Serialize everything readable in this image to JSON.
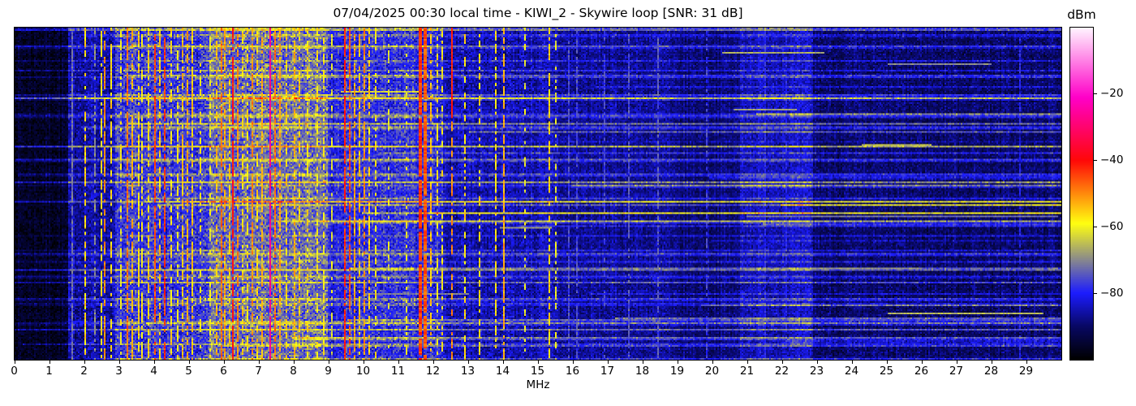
{
  "title": "07/04/2025 00:30 local time - KIWI_2 - Skywire loop [SNR: 31 dB]",
  "x_axis": {
    "label": "MHz",
    "ticks": [
      0,
      1,
      2,
      3,
      4,
      5,
      6,
      7,
      8,
      9,
      10,
      11,
      12,
      13,
      14,
      15,
      16,
      17,
      18,
      19,
      20,
      21,
      22,
      23,
      24,
      25,
      26,
      27,
      28,
      29
    ]
  },
  "colorbar": {
    "label": "dBm",
    "ticks": [
      {
        "v": -20,
        "label": "−20"
      },
      {
        "v": -40,
        "label": "−40"
      },
      {
        "v": -60,
        "label": "−60"
      },
      {
        "v": -80,
        "label": "−80"
      }
    ]
  },
  "chart_data": {
    "type": "heatmap",
    "subtype": "radio-spectrogram-waterfall",
    "title": "07/04/2025 00:30 local time - KIWI_2 - Skywire loop [SNR: 31 dB]",
    "xlabel": "MHz",
    "x_range_mhz": [
      0,
      30
    ],
    "x_ticks": [
      0,
      1,
      2,
      3,
      4,
      5,
      6,
      7,
      8,
      9,
      10,
      11,
      12,
      13,
      14,
      15,
      16,
      17,
      18,
      19,
      20,
      21,
      22,
      23,
      24,
      25,
      26,
      27,
      28,
      29
    ],
    "y_axis": "time (unlabeled, newest rows)",
    "snr_db": 31,
    "colorbar": {
      "label": "dBm",
      "range_top_dbm": 0,
      "range_bottom_dbm": -100,
      "ticks": [
        -20,
        -40,
        -60,
        -80
      ],
      "stops": [
        [
          -100,
          0,
          0,
          0
        ],
        [
          -90,
          8,
          8,
          100
        ],
        [
          -80,
          28,
          28,
          255
        ],
        [
          -59,
          255,
          255,
          16
        ],
        [
          -40,
          255,
          8,
          8
        ],
        [
          -21,
          255,
          0,
          200
        ],
        [
          0,
          255,
          244,
          255
        ]
      ]
    },
    "seed": 7,
    "noise_regions": [
      [
        0.0,
        1.55,
        -96,
        5
      ],
      [
        1.55,
        2.9,
        -86,
        7
      ],
      [
        2.9,
        5.6,
        -78,
        10
      ],
      [
        5.6,
        9.0,
        -73,
        10
      ],
      [
        9.0,
        9.35,
        -80,
        8
      ],
      [
        9.35,
        12.3,
        -79,
        9
      ],
      [
        12.3,
        15.6,
        -85,
        7
      ],
      [
        15.6,
        18.8,
        -87,
        6
      ],
      [
        18.8,
        20.8,
        -89,
        5
      ],
      [
        20.8,
        22.9,
        -84,
        6
      ],
      [
        22.9,
        30.0,
        -90,
        6
      ]
    ],
    "signals": [
      [
        1.62,
        0.02,
        -73,
        0.95
      ],
      [
        2.02,
        0.03,
        -56,
        0.6
      ],
      [
        2.3,
        0.02,
        -70,
        0.6
      ],
      [
        2.46,
        0.03,
        -58,
        0.65
      ],
      [
        2.57,
        0.04,
        -50,
        0.8
      ],
      [
        2.76,
        0.03,
        -57,
        0.6
      ],
      [
        3.02,
        0.03,
        -60,
        0.55
      ],
      [
        3.22,
        0.05,
        -48,
        0.8
      ],
      [
        3.33,
        0.04,
        -53,
        0.7
      ],
      [
        3.52,
        0.05,
        -56,
        0.75
      ],
      [
        3.65,
        0.03,
        -58,
        0.6
      ],
      [
        3.8,
        0.04,
        -56,
        0.7
      ],
      [
        3.98,
        0.06,
        -45,
        0.85
      ],
      [
        4.12,
        0.03,
        -55,
        0.6
      ],
      [
        4.28,
        0.05,
        -44,
        0.8
      ],
      [
        4.47,
        0.03,
        -57,
        0.6
      ],
      [
        4.65,
        0.03,
        -58,
        0.55
      ],
      [
        4.8,
        0.04,
        -54,
        0.7
      ],
      [
        4.95,
        0.05,
        -52,
        0.75
      ],
      [
        5.07,
        0.04,
        -55,
        0.7
      ],
      [
        5.3,
        0.03,
        -58,
        0.5
      ],
      [
        5.58,
        0.03,
        -60,
        0.5
      ],
      [
        5.75,
        0.04,
        -54,
        0.7
      ],
      [
        5.9,
        0.05,
        -48,
        0.8
      ],
      [
        6.01,
        0.04,
        -52,
        0.7
      ],
      [
        6.12,
        0.04,
        -55,
        0.65
      ],
      [
        6.23,
        0.06,
        -40,
        0.9
      ],
      [
        6.36,
        0.04,
        -50,
        0.7
      ],
      [
        6.51,
        0.03,
        -56,
        0.6
      ],
      [
        6.66,
        0.03,
        -57,
        0.6
      ],
      [
        6.8,
        0.05,
        -50,
        0.75
      ],
      [
        6.95,
        0.03,
        -56,
        0.6
      ],
      [
        7.09,
        0.04,
        -53,
        0.7
      ],
      [
        7.29,
        0.05,
        -28,
        0.95
      ],
      [
        7.43,
        0.04,
        -48,
        0.8
      ],
      [
        7.56,
        0.04,
        -52,
        0.7
      ],
      [
        7.79,
        0.03,
        -56,
        0.6
      ],
      [
        8.01,
        0.05,
        -53,
        0.7
      ],
      [
        8.16,
        0.04,
        -55,
        0.6
      ],
      [
        8.36,
        0.03,
        -57,
        0.55
      ],
      [
        8.63,
        0.03,
        -58,
        0.5
      ],
      [
        8.82,
        0.03,
        -59,
        0.5
      ],
      [
        9.05,
        0.02,
        -62,
        0.4
      ],
      [
        9.42,
        0.05,
        -42,
        0.85
      ],
      [
        9.56,
        0.05,
        -45,
        0.8
      ],
      [
        9.7,
        0.04,
        -52,
        0.7
      ],
      [
        9.86,
        0.04,
        -54,
        0.7
      ],
      [
        10.02,
        0.05,
        -50,
        0.75
      ],
      [
        10.16,
        0.04,
        -55,
        0.65
      ],
      [
        10.33,
        0.03,
        -58,
        0.5
      ],
      [
        10.7,
        0.02,
        -62,
        0.35
      ],
      [
        11.2,
        0.03,
        -60,
        0.4
      ],
      [
        11.63,
        0.09,
        -44,
        0.9
      ],
      [
        11.78,
        0.08,
        -46,
        0.9
      ],
      [
        11.92,
        0.04,
        -54,
        0.6
      ],
      [
        12.08,
        0.03,
        -58,
        0.5
      ],
      [
        12.24,
        0.02,
        -58,
        0.45
      ],
      [
        12.53,
        0.03,
        -50,
        0.55
      ],
      [
        12.88,
        0.02,
        -57,
        0.5
      ],
      [
        13.28,
        0.02,
        -57,
        0.5
      ],
      [
        13.75,
        0.02,
        -57,
        0.6
      ],
      [
        14.0,
        0.03,
        -53,
        0.75
      ],
      [
        14.6,
        0.02,
        -61,
        0.35
      ],
      [
        15.28,
        0.03,
        -56,
        0.65
      ],
      [
        15.47,
        0.02,
        -61,
        0.4
      ],
      [
        15.85,
        0.02,
        -76,
        0.8
      ],
      [
        16.1,
        0.02,
        -76,
        0.7
      ],
      [
        16.9,
        0.02,
        -77,
        0.6
      ],
      [
        17.6,
        0.02,
        -75,
        0.8
      ],
      [
        18.4,
        0.02,
        -75,
        0.7
      ],
      [
        19.8,
        0.02,
        -77,
        0.6
      ],
      [
        21.5,
        0.03,
        -80,
        0.8
      ],
      [
        22.1,
        0.03,
        -80,
        0.8
      ],
      [
        28.8,
        0.02,
        -80,
        0.7
      ]
    ],
    "partial_vlines": [
      [
        12.53,
        -42,
        0.0,
        0.27
      ]
    ],
    "h_segments": [
      [
        0.19,
        9.33,
        11.65,
        -63
      ],
      [
        0.075,
        20.3,
        23.2,
        -67
      ],
      [
        0.105,
        25.0,
        28.0,
        -70
      ],
      [
        0.245,
        20.6,
        22.4,
        -68
      ],
      [
        0.35,
        24.3,
        26.3,
        -65
      ],
      [
        0.565,
        21.0,
        29.9,
        -72
      ],
      [
        0.6,
        13.9,
        15.4,
        -68
      ],
      [
        0.72,
        22.0,
        26.0,
        -69
      ],
      [
        0.8,
        10.0,
        13.0,
        -71
      ],
      [
        0.86,
        25.0,
        29.5,
        -66
      ]
    ],
    "h_streaks": {
      "count": 64,
      "boost_min": 3,
      "boost_max": 13,
      "right_bias": 6,
      "full_width_prob": 0.5
    }
  }
}
